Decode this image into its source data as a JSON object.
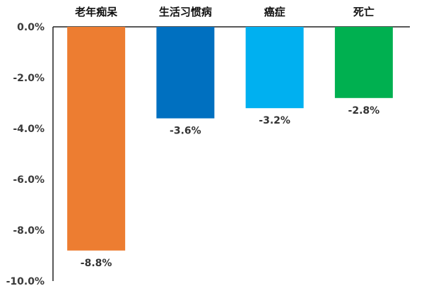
{
  "chart_data": {
    "type": "bar",
    "categories": [
      "老年痴呆",
      "生活习惯病",
      "癌症",
      "死亡"
    ],
    "values": [
      -8.8,
      -3.6,
      -3.2,
      -2.8
    ],
    "value_labels": [
      "-8.8%",
      "-3.6%",
      "-3.2%",
      "-2.8%"
    ],
    "colors": [
      "#ED7D31",
      "#0070C0",
      "#00B0F0",
      "#00B050"
    ],
    "ylim": [
      -10.0,
      0.0
    ],
    "yticks": [
      0.0,
      -2.0,
      -4.0,
      -6.0,
      -8.0,
      -10.0
    ],
    "ytick_labels": [
      "0.0%",
      "-2.0%",
      "-4.0%",
      "-6.0%",
      "-8.0%",
      "-10.0%"
    ],
    "title": "",
    "xlabel": "",
    "ylabel": "",
    "grid": false,
    "legend": "none"
  }
}
